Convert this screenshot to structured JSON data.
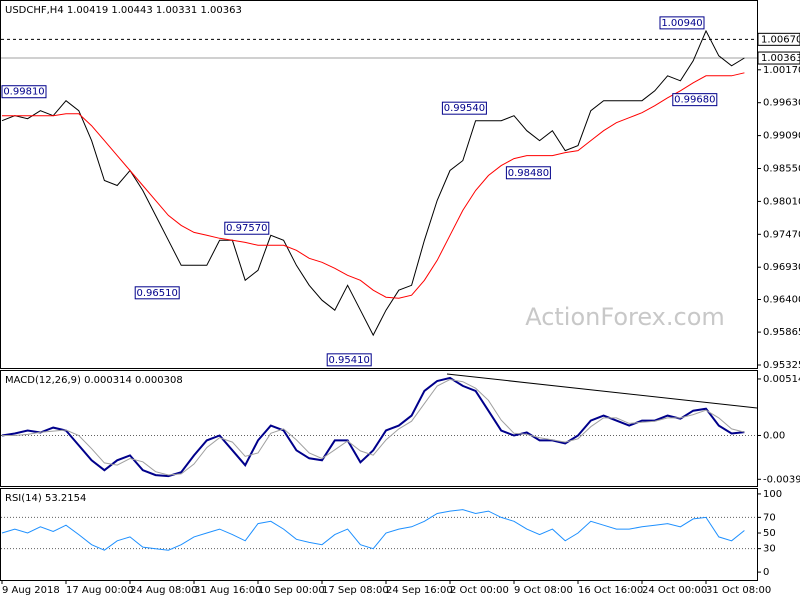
{
  "chart_data": [
    {
      "type": "line",
      "title": "USDCHF,H4  1.00419 1.00443 1.00331 1.00363",
      "watermark": "ActionForex.com",
      "categories": [
        "9 Aug 2018",
        null,
        null,
        null,
        null,
        "17 Aug 00:00",
        null,
        null,
        null,
        null,
        "24 Aug 08:00",
        null,
        null,
        null,
        null,
        "31 Aug 16:00",
        null,
        null,
        null,
        null,
        "10 Sep 00:00",
        null,
        null,
        null,
        null,
        "17 Sep 08:00",
        null,
        null,
        null,
        null,
        "24 Sep 16:00",
        null,
        null,
        null,
        null,
        "2 Oct 00:00",
        null,
        null,
        null,
        null,
        "9 Oct 08:00",
        null,
        null,
        null,
        null,
        "16 Oct 16:00",
        null,
        null,
        null,
        null,
        "24 Oct 00:00",
        null,
        null,
        null,
        null,
        "31 Oct 08:00",
        null,
        null,
        null
      ],
      "series": [
        {
          "color": "#000000",
          "values": [
            0.99335,
            0.99417,
            0.99368,
            0.99499,
            0.99417,
            0.99662,
            0.99499,
            0.99008,
            0.98353,
            0.98271,
            0.98517,
            0.98189,
            0.9778,
            0.97371,
            0.96962,
            0.96962,
            0.96962,
            0.97371,
            0.97371,
            0.96716,
            0.9688,
            0.97453,
            0.97371,
            0.96962,
            0.96634,
            0.96389,
            0.96225,
            0.96634,
            0.96225,
            0.95816,
            0.96225,
            0.96553,
            0.96634,
            0.97371,
            0.98026,
            0.98517,
            0.9868,
            0.99335,
            0.99335,
            0.99335,
            0.99417,
            0.99171,
            0.99008,
            0.99171,
            0.98844,
            0.98926,
            0.99499,
            0.99662,
            0.99662,
            0.99662,
            0.99662,
            0.99826,
            1.00071,
            0.9999,
            1.00317,
            1.00808,
            1.00399,
            1.00235,
            1.00363
          ]
        },
        {
          "color": "#ff0000",
          "values": [
            0.99417,
            0.99417,
            0.99417,
            0.99417,
            0.99417,
            0.9945,
            0.9945,
            0.99253,
            0.99008,
            0.98762,
            0.98517,
            0.98271,
            0.98026,
            0.9778,
            0.97616,
            0.97502,
            0.97453,
            0.97404,
            0.97371,
            0.97338,
            0.97289,
            0.97289,
            0.97289,
            0.97207,
            0.97076,
            0.97011,
            0.96913,
            0.96798,
            0.96716,
            0.96553,
            0.96438,
            0.96422,
            0.96471,
            0.96716,
            0.97044,
            0.97453,
            0.97862,
            0.98189,
            0.98435,
            0.98598,
            0.98713,
            0.98762,
            0.98762,
            0.98762,
            0.98811,
            0.98844,
            0.99008,
            0.99171,
            0.99302,
            0.99384,
            0.99466,
            0.9958,
            0.99711,
            0.99826,
            0.99957,
            1.00071,
            1.00071,
            1.00071,
            1.00121
          ]
        }
      ],
      "ylim": [
        0.95276,
        1.01299
      ],
      "yticks": [
        {
          "value": 1.0017,
          "label": "1.00170"
        },
        {
          "value": 0.9963,
          "label": "0.99630"
        },
        {
          "value": 0.9909,
          "label": "0.99090"
        },
        {
          "value": 0.9855,
          "label": "0.98550"
        },
        {
          "value": 0.9801,
          "label": "0.98010"
        },
        {
          "value": 0.9747,
          "label": "0.97470"
        },
        {
          "value": 0.9693,
          "label": "0.96930"
        },
        {
          "value": 0.964,
          "label": "0.96400"
        },
        {
          "value": 0.95865,
          "label": "0.95865"
        },
        {
          "value": 0.95325,
          "label": "0.95325"
        }
      ],
      "hlines": [
        {
          "value": 1.0067,
          "label": "1.00670",
          "style": "dashed"
        },
        {
          "value": 1.00363,
          "label": "1.00363",
          "style": "solid"
        }
      ],
      "annotations": [
        {
          "index": 55,
          "value": 1.0094,
          "label": "1.00940"
        },
        {
          "index": 3,
          "value": 0.9981,
          "label": "0.99810"
        },
        {
          "index": 38,
          "value": 0.9954,
          "label": "0.99540"
        },
        {
          "index": 21,
          "value": 0.9757,
          "label": "0.97570"
        },
        {
          "index": 14,
          "value": 0.9651,
          "label": "0.96510"
        },
        {
          "index": 43,
          "value": 0.9848,
          "label": "0.98480"
        },
        {
          "index": 56,
          "value": 0.9968,
          "label": "0.99680"
        },
        {
          "index": 29,
          "value": 0.9541,
          "label": "0.95410"
        }
      ]
    },
    {
      "type": "line",
      "title": "MACD(12,26,9) 0.000314 0.000308",
      "series": [
        {
          "color": "#00008b",
          "width": 2,
          "values": [
            0,
            0.00018,
            0.00045,
            0.00027,
            0.00072,
            0.00045,
            -0.0009,
            -0.00226,
            -0.00316,
            -0.00226,
            -0.00181,
            -0.00316,
            -0.00361,
            -0.0037,
            -0.00334,
            -0.00181,
            -0.00045,
            0,
            -0.00135,
            -0.00271,
            -0.00045,
            0.0009,
            0.00045,
            -0.00135,
            -0.00208,
            -0.00226,
            -0.00045,
            -0.00045,
            -0.00244,
            -0.00135,
            0.00045,
            0.0009,
            0.00181,
            0.00406,
            0.00496,
            0.00524,
            0.00451,
            0.00406,
            0.00226,
            0.00045,
            0,
            0.00027,
            -0.00045,
            -0.00045,
            -0.00072,
            0,
            0.00135,
            0.00181,
            0.00135,
            0.0009,
            0.00135,
            0.00135,
            0.00181,
            0.00153,
            0.00226,
            0.00244,
            0.0009,
            0.00018,
            0.00031
          ]
        },
        {
          "color": "#a0a0a0",
          "width": 1,
          "values": [
            0,
            0,
            0.0001,
            0.0003,
            0.0004,
            0.0005,
            0,
            -0.0012,
            -0.0025,
            -0.0027,
            -0.0021,
            -0.0024,
            -0.0033,
            -0.0036,
            -0.0035,
            -0.0026,
            -0.0011,
            -0.0002,
            -0.0006,
            -0.0019,
            -0.0016,
            0.0002,
            0.0006,
            -0.0004,
            -0.0016,
            -0.0021,
            -0.0013,
            -0.0005,
            -0.0014,
            -0.0018,
            -0.0004,
            0.0006,
            0.0013,
            0.0029,
            0.0045,
            0.0051,
            0.0049,
            0.0043,
            0.0032,
            0.0014,
            0.0002,
            0.0001,
            -0.0002,
            -0.0004,
            -0.0006,
            -0.0003,
            0.0008,
            0.0016,
            0.0016,
            0.0011,
            0.0012,
            0.0013,
            0.0016,
            0.0016,
            0.0019,
            0.0023,
            0.0016,
            0.0006,
            0.00031
          ]
        }
      ],
      "ylim": [
        -0.0046,
        0.00587
      ],
      "yticks": [
        0.005145,
        {
          "value": 0,
          "label": "0.00"
        },
        -0.003989
      ],
      "levels": [
        0
      ],
      "level_style": "dotted"
    },
    {
      "type": "line",
      "title": "RSI(14) 53.2154",
      "series": [
        {
          "color": "#1e90ff",
          "width": 1,
          "values": [
            50,
            55,
            50,
            58,
            52,
            60,
            48,
            35,
            28,
            40,
            45,
            32,
            30,
            28,
            35,
            45,
            50,
            55,
            48,
            40,
            62,
            65,
            55,
            42,
            38,
            35,
            48,
            55,
            35,
            30,
            50,
            55,
            58,
            65,
            75,
            78,
            80,
            75,
            78,
            70,
            65,
            55,
            48,
            55,
            40,
            50,
            65,
            60,
            55,
            55,
            58,
            60,
            62,
            58,
            68,
            70,
            45,
            40,
            53.2154
          ]
        }
      ],
      "ylim": [
        -10.1,
        106.3
      ],
      "yticks": [
        100,
        70,
        50,
        30,
        0
      ],
      "levels": [
        70,
        30
      ],
      "level_style": "dotted"
    }
  ]
}
